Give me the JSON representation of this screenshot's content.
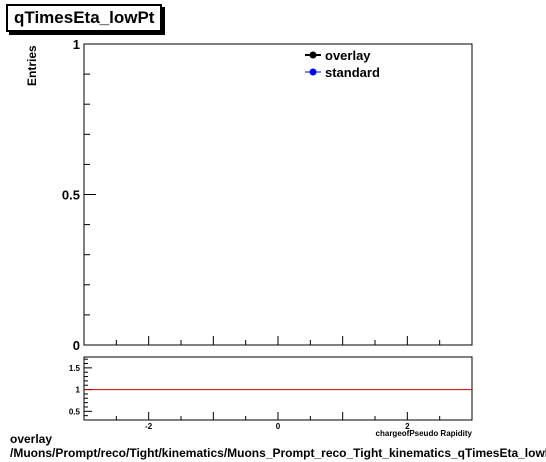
{
  "title": "qTimesEta_lowPt",
  "footer": {
    "line1": "overlay",
    "line2": "/Muons/Prompt/reco/Tight/kinematics/Muons_Prompt_reco_Tight_kinematics_qTimesEta_lowPt"
  },
  "colors": {
    "overlay": "#000000",
    "standard": "#0000ff",
    "ratio_line": "#cc0000"
  },
  "chart_data": [
    {
      "type": "line",
      "title": "qTimesEta_lowPt",
      "ylabel": "Entries",
      "xlabel": "",
      "xlim": [
        -3.0,
        3.0
      ],
      "ylim": [
        0,
        1
      ],
      "y_ticks": [
        {
          "v": 0,
          "label": "0"
        },
        {
          "v": 0.5,
          "label": "0.5"
        },
        {
          "v": 1,
          "label": "1"
        }
      ],
      "series": [
        {
          "name": "overlay",
          "values": []
        },
        {
          "name": "standard",
          "values": []
        }
      ],
      "legend_position": "top-right",
      "grid": false
    },
    {
      "type": "line",
      "title": "",
      "xlabel": "chargeofPseudo Rapidity",
      "ylabel": "",
      "xlim": [
        -3.0,
        3.0
      ],
      "ylim": [
        0.3,
        1.75
      ],
      "x_ticks": [
        {
          "v": -2,
          "label": "-2"
        },
        {
          "v": 0,
          "label": "0"
        },
        {
          "v": 2,
          "label": "2"
        }
      ],
      "y_ticks": [
        {
          "v": 0.5,
          "label": "0.5"
        },
        {
          "v": 1,
          "label": "1"
        },
        {
          "v": 1.5,
          "label": "1.5"
        }
      ],
      "reference_line": 1,
      "grid": false
    }
  ]
}
